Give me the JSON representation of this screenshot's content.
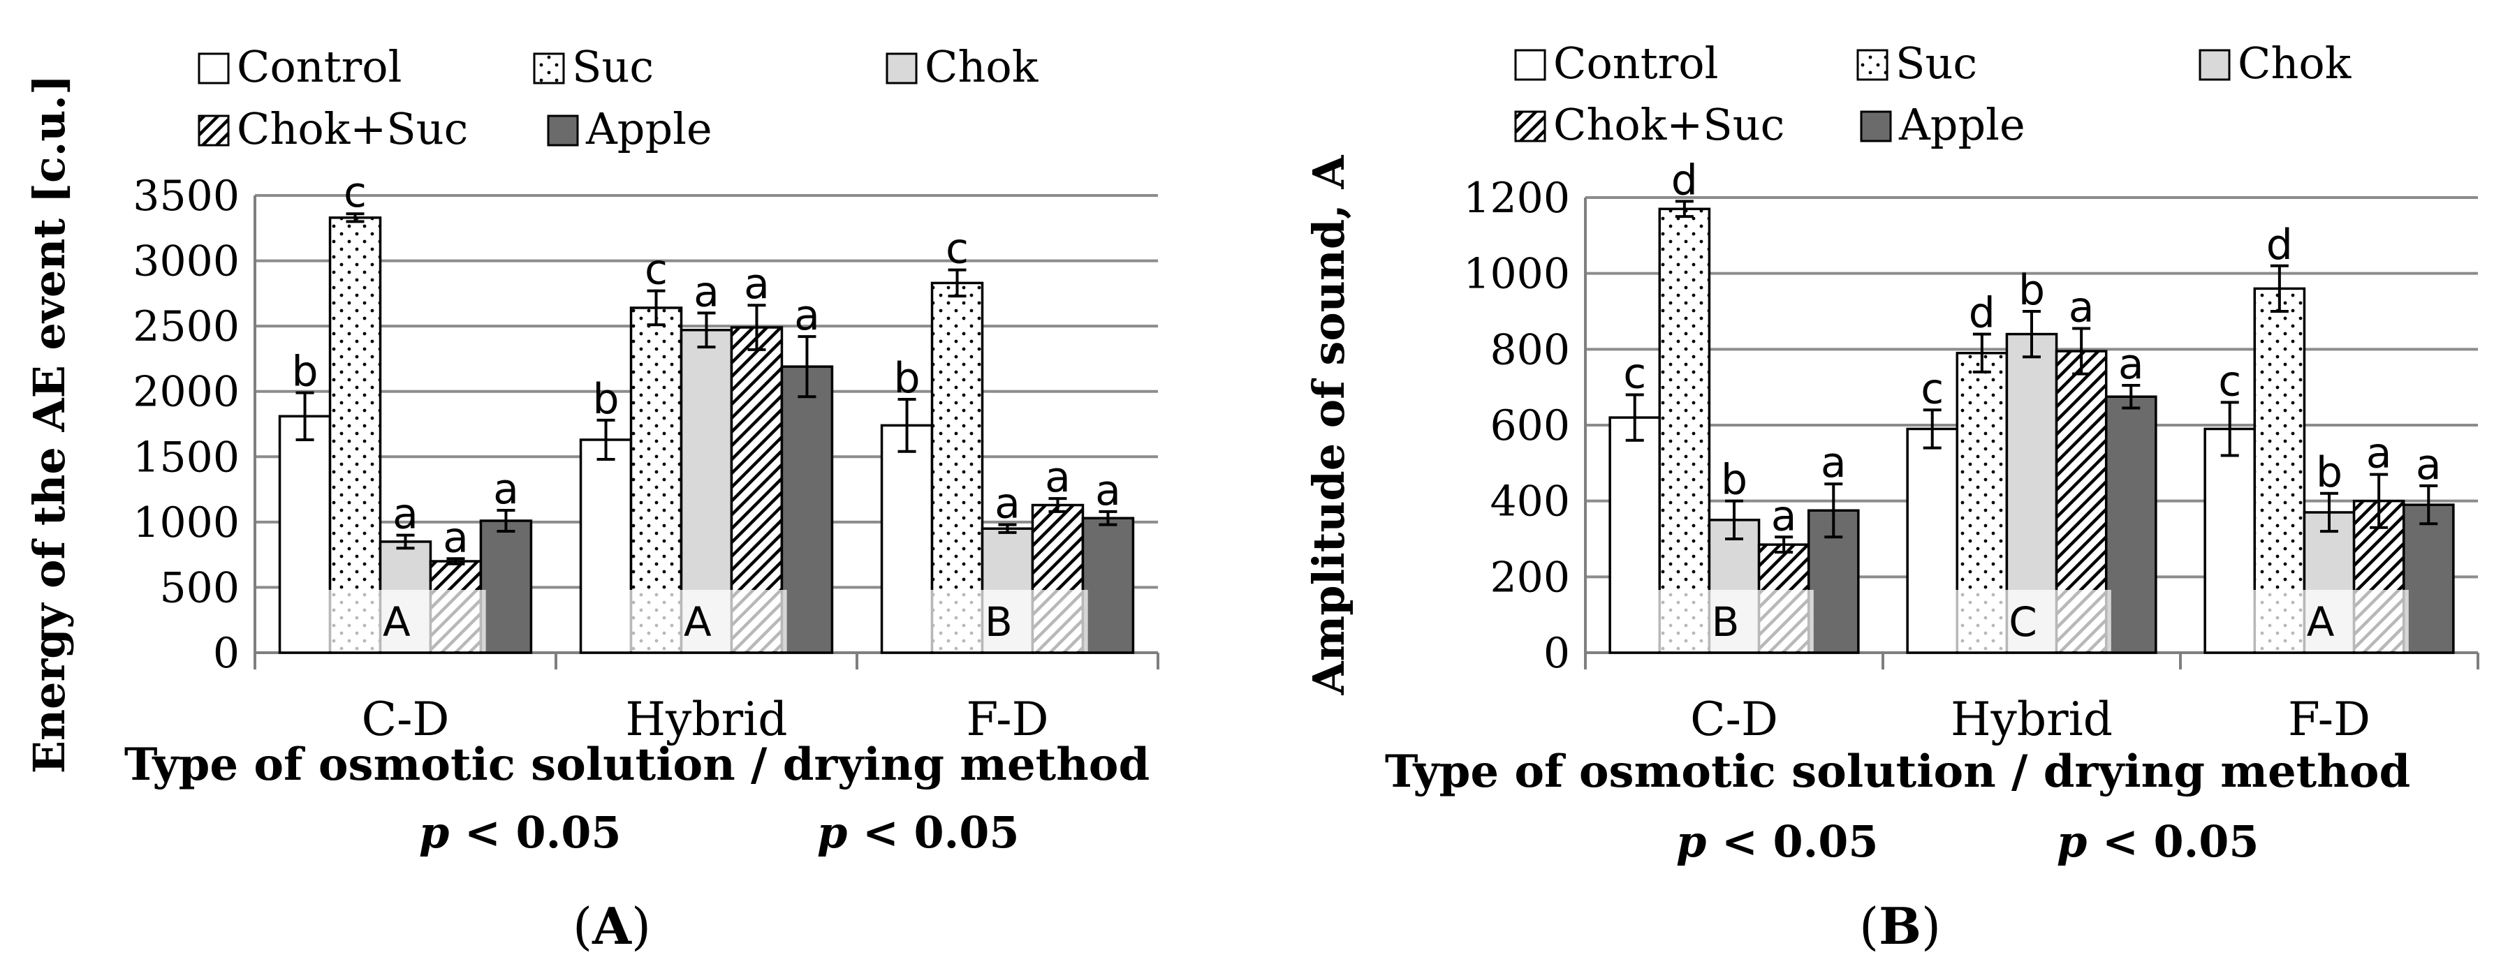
{
  "panels": [
    {
      "panel_label": "A",
      "yticks": [
        "0",
        "500",
        "1000",
        "1500",
        "2000",
        "2500",
        "3000",
        "3500"
      ]
    },
    {
      "panel_label": "B",
      "yticks": [
        "0",
        "200",
        "400",
        "600",
        "800",
        "1000",
        "1200"
      ]
    }
  ],
  "sig_labels": [
    "p < 0.05",
    "p < 0.05"
  ],
  "colors": {
    "control": "#ffffff",
    "suc": "#ffffff",
    "chok": "#d9d9d9",
    "choksuc": "#ffffff",
    "apple": "#6b6b6b",
    "grid": "#8c8c8c",
    "axis": "#7f7f7f",
    "ink": "#000000"
  },
  "chart_data": [
    {
      "type": "bar",
      "title": "",
      "xlabel": "Type of osmotic solution / drying method",
      "ylabel": "Energy of the AE event [c.u.]",
      "ylim": [
        0,
        3500
      ],
      "categories": [
        "C-D",
        "Hybrid",
        "F-D"
      ],
      "series": [
        {
          "name": "Control",
          "values": [
            1810,
            1630,
            1740
          ],
          "errors": [
            180,
            150,
            200
          ],
          "letters": [
            "b",
            "b",
            "b"
          ]
        },
        {
          "name": "Suc",
          "values": [
            3330,
            2640,
            2830
          ],
          "errors": [
            30,
            130,
            100
          ],
          "letters": [
            "c",
            "c",
            "c"
          ]
        },
        {
          "name": "Chok",
          "values": [
            850,
            2470,
            950
          ],
          "errors": [
            50,
            130,
            30
          ],
          "letters": [
            "a",
            "a",
            "a"
          ]
        },
        {
          "name": "Chok+Suc",
          "values": [
            700,
            2490,
            1130
          ],
          "errors": [
            20,
            170,
            50
          ],
          "letters": [
            "a",
            "a",
            "a"
          ]
        },
        {
          "name": "Apple",
          "values": [
            1010,
            2190,
            1030
          ],
          "errors": [
            80,
            230,
            50
          ],
          "letters": [
            "a",
            "a",
            "a"
          ]
        }
      ],
      "group_letters": [
        "A",
        "A",
        "B"
      ]
    },
    {
      "type": "bar",
      "title": "",
      "xlabel": "Type of osmotic solution / drying method",
      "ylabel": "Amplitude of sound, A",
      "ylim": [
        0,
        1200
      ],
      "categories": [
        "C-D",
        "Hybrid",
        "F-D"
      ],
      "series": [
        {
          "name": "Control",
          "values": [
            620,
            590,
            590
          ],
          "errors": [
            60,
            50,
            70
          ],
          "letters": [
            "c",
            "c",
            "c"
          ]
        },
        {
          "name": "Suc",
          "values": [
            1170,
            790,
            960
          ],
          "errors": [
            20,
            50,
            60
          ],
          "letters": [
            "d",
            "d",
            "d"
          ]
        },
        {
          "name": "Chok",
          "values": [
            350,
            840,
            370
          ],
          "errors": [
            50,
            60,
            50
          ],
          "letters": [
            "b",
            "b",
            "b"
          ]
        },
        {
          "name": "Chok+Suc",
          "values": [
            285,
            795,
            400
          ],
          "errors": [
            20,
            60,
            70
          ],
          "letters": [
            "a",
            "a",
            "a"
          ]
        },
        {
          "name": "Apple",
          "values": [
            375,
            675,
            390
          ],
          "errors": [
            70,
            30,
            50
          ],
          "letters": [
            "a",
            "a",
            "a"
          ]
        }
      ],
      "group_letters": [
        "B",
        "C",
        "A"
      ]
    }
  ]
}
